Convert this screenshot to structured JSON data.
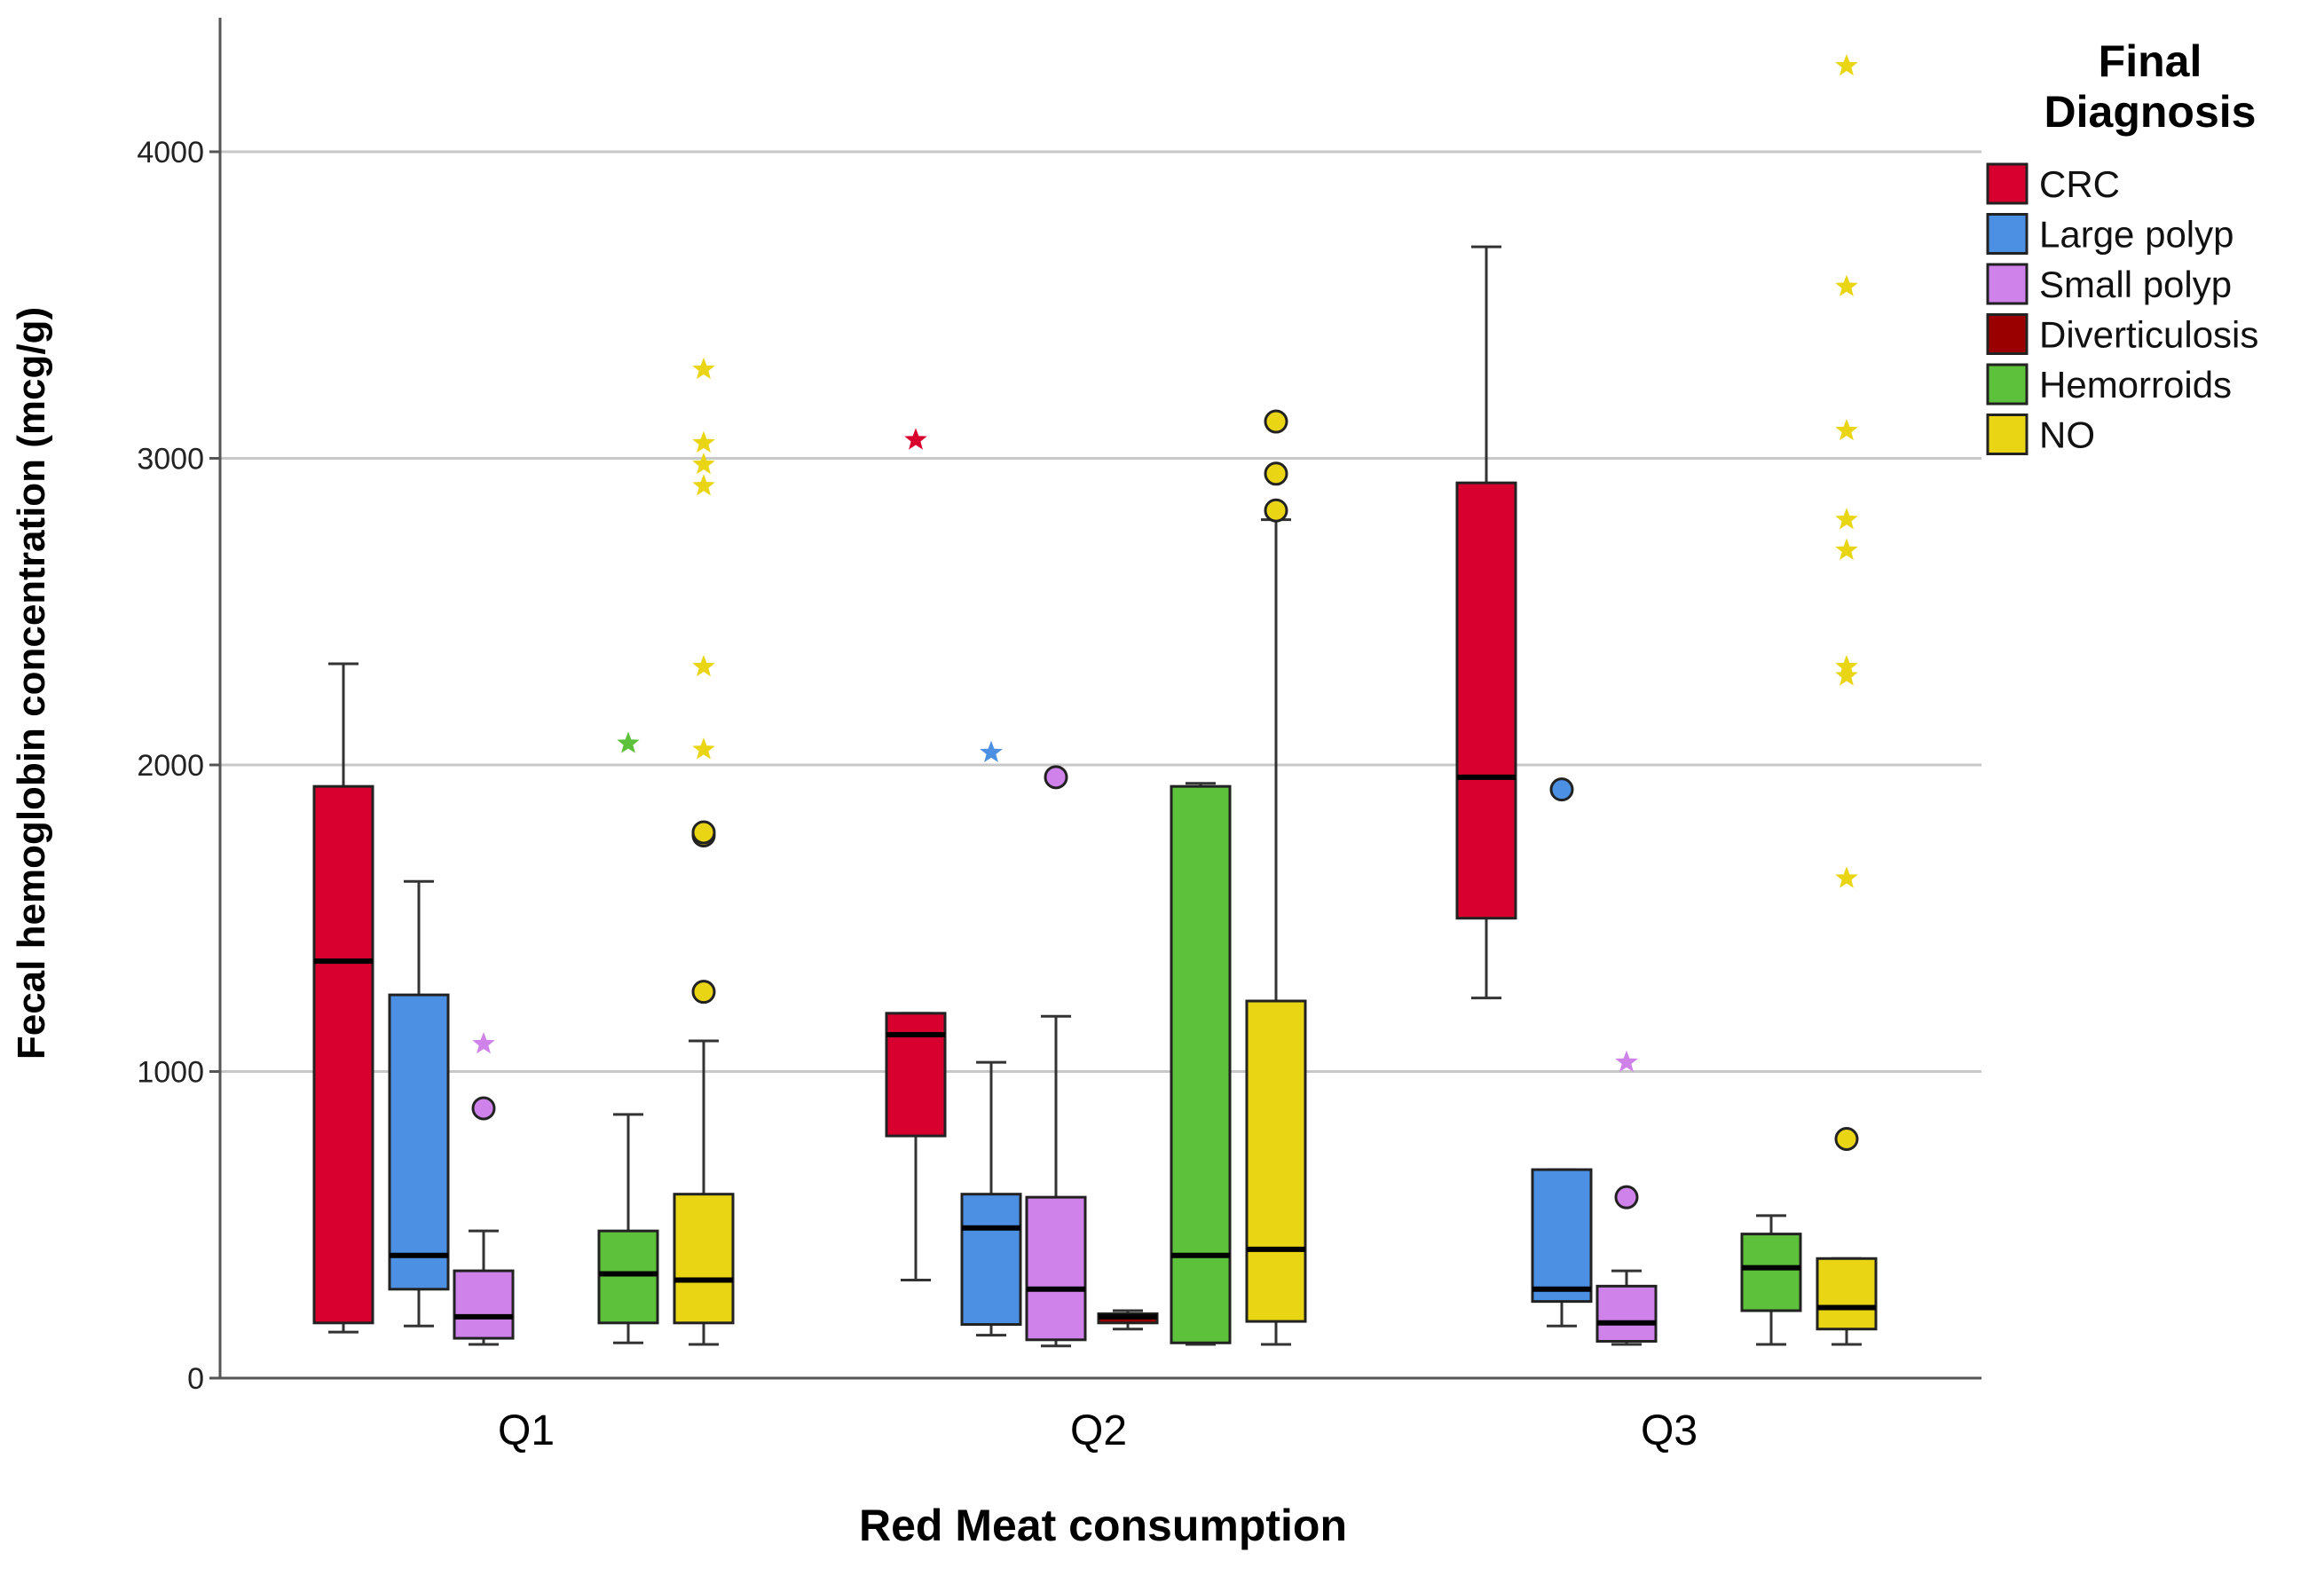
{
  "chart_data": {
    "type": "boxplot",
    "title": "",
    "xlabel": "Red Meat consumption",
    "ylabel": "Fecal hemoglobin concentration (mcg/g)",
    "ylim": [
      0,
      4400
    ],
    "yticks": [
      0,
      1000,
      2000,
      3000,
      4000
    ],
    "grid": true,
    "legend_position": "right",
    "legend_title": [
      "Final",
      "Diagnosis"
    ],
    "categories": [
      "Q1",
      "Q2",
      "Q3"
    ],
    "series": [
      {
        "name": "CRC",
        "color": "#D8002E"
      },
      {
        "name": "Large polyp",
        "color": "#4C90E4"
      },
      {
        "name": "Small polyp",
        "color": "#CE82EA"
      },
      {
        "name": "Diverticulosis",
        "color": "#9B0000"
      },
      {
        "name": "Hemorroids",
        "color": "#5DC13B"
      },
      {
        "name": "NO",
        "color": "#E9D513"
      }
    ],
    "boxes": [
      {
        "category": "Q1",
        "series": "CRC",
        "low": 150,
        "q1": 180,
        "median": 1360,
        "q3": 1930,
        "high": 2330,
        "outliers": [],
        "extremes": []
      },
      {
        "category": "Q1",
        "series": "Large polyp",
        "low": 170,
        "q1": 290,
        "median": 400,
        "q3": 1250,
        "high": 1620,
        "outliers": [],
        "extremes": []
      },
      {
        "category": "Q1",
        "series": "Small polyp",
        "low": 110,
        "q1": 130,
        "median": 200,
        "q3": 350,
        "high": 480,
        "outliers": [
          880
        ],
        "extremes": [
          1090
        ]
      },
      {
        "category": "Q1",
        "series": "Hemorroids",
        "low": 115,
        "q1": 180,
        "median": 340,
        "q3": 480,
        "high": 860,
        "outliers": [],
        "extremes": [
          2070
        ]
      },
      {
        "category": "Q1",
        "series": "NO",
        "low": 110,
        "q1": 180,
        "median": 320,
        "q3": 600,
        "high": 1100,
        "outliers": [
          1260,
          1770,
          1780
        ],
        "extremes": [
          2050,
          2320,
          2910,
          2980,
          3050,
          3290
        ]
      },
      {
        "category": "Q2",
        "series": "CRC",
        "low": 320,
        "q1": 790,
        "median": 1120,
        "q3": 1190,
        "high": 1190,
        "outliers": [],
        "extremes": [
          3060
        ]
      },
      {
        "category": "Q2",
        "series": "Large polyp",
        "low": 140,
        "q1": 175,
        "median": 490,
        "q3": 600,
        "high": 1030,
        "outliers": [],
        "extremes": [
          2040
        ]
      },
      {
        "category": "Q2",
        "series": "Small polyp",
        "low": 105,
        "q1": 125,
        "median": 290,
        "q3": 590,
        "high": 1180,
        "outliers": [
          1960
        ],
        "extremes": []
      },
      {
        "category": "Q2",
        "series": "Diverticulosis",
        "low": 160,
        "q1": 180,
        "median": 200,
        "q3": 210,
        "high": 220,
        "outliers": [],
        "extremes": []
      },
      {
        "category": "Q2",
        "series": "Hemorroids",
        "low": 110,
        "q1": 115,
        "median": 400,
        "q3": 1930,
        "high": 1940,
        "outliers": [],
        "extremes": []
      },
      {
        "category": "Q2",
        "series": "NO",
        "low": 110,
        "q1": 185,
        "median": 420,
        "q3": 1230,
        "high": 2800,
        "outliers": [
          2830,
          2950,
          3120
        ],
        "extremes": []
      },
      {
        "category": "Q3",
        "series": "CRC",
        "low": 1240,
        "q1": 1500,
        "median": 1960,
        "q3": 2920,
        "high": 3690,
        "outliers": [],
        "extremes": []
      },
      {
        "category": "Q3",
        "series": "Large polyp",
        "low": 170,
        "q1": 250,
        "median": 290,
        "q3": 680,
        "high": 680,
        "outliers": [
          1920
        ],
        "extremes": []
      },
      {
        "category": "Q3",
        "series": "Small polyp",
        "low": 110,
        "q1": 120,
        "median": 180,
        "q3": 300,
        "high": 350,
        "outliers": [
          590
        ],
        "extremes": [
          1030
        ]
      },
      {
        "category": "Q3",
        "series": "Hemorroids",
        "low": 110,
        "q1": 220,
        "median": 360,
        "q3": 470,
        "high": 530,
        "outliers": [],
        "extremes": []
      },
      {
        "category": "Q3",
        "series": "NO",
        "low": 110,
        "q1": 160,
        "median": 230,
        "q3": 390,
        "high": 390,
        "outliers": [
          780
        ],
        "extremes": [
          1630,
          2290,
          2320,
          2700,
          2800,
          3090,
          3560,
          4280
        ]
      }
    ]
  }
}
